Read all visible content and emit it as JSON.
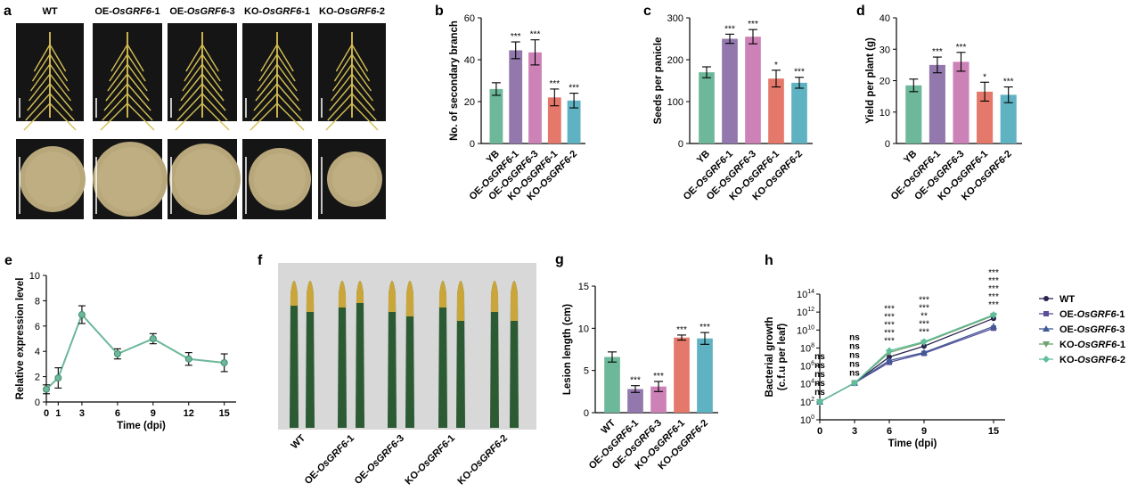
{
  "colors": {
    "YB": "#6db79a",
    "OE1": "#9278ad",
    "OE3": "#cd82b7",
    "KO1": "#e4786a",
    "KO2": "#5fb2c2",
    "line_e": "#6db79a",
    "leaf_dark": "#2b5a33",
    "leaf_yellow": "#c9a53a",
    "photo_bg": "#151515",
    "leaf_bg": "#d8d8d8",
    "grain": "#b8a77a"
  },
  "panels": {
    "a": {
      "letter": "a",
      "labels": [
        {
          "plain": "WT",
          "italic": "",
          "suffix": ""
        },
        {
          "plain": "OE-",
          "italic": "OsGRF6",
          "suffix": "-1"
        },
        {
          "plain": "OE-",
          "italic": "OsGRF6",
          "suffix": "-3"
        },
        {
          "plain": "KO-",
          "italic": "OsGRF6",
          "suffix": "-1"
        },
        {
          "plain": "KO-",
          "italic": "OsGRF6",
          "suffix": "-2"
        }
      ]
    },
    "f": {
      "letter": "f",
      "labels": [
        {
          "plain": "WT",
          "italic": "",
          "suffix": ""
        },
        {
          "plain": "OE-",
          "italic": "OsGRF6",
          "suffix": "-1"
        },
        {
          "plain": "OE-",
          "italic": "OsGRF6",
          "suffix": "-3"
        },
        {
          "plain": "KO-",
          "italic": "OsGRF6",
          "suffix": "-1"
        },
        {
          "plain": "KO-",
          "italic": "OsGRF6",
          "suffix": "-2"
        }
      ]
    }
  },
  "chart_data": [
    {
      "id": "b",
      "letter": "b",
      "type": "bar",
      "ylabel": "No. of secondary branch",
      "ylim": [
        0,
        60
      ],
      "yticks": [
        0,
        20,
        40,
        60
      ],
      "categories": [
        {
          "plain": "YB",
          "italic": "",
          "suffix": ""
        },
        {
          "plain": "OE-",
          "italic": "OsGRF6",
          "suffix": "-1"
        },
        {
          "plain": "OE-",
          "italic": "OsGRF6",
          "suffix": "-3"
        },
        {
          "plain": "KO-",
          "italic": "OsGRF6",
          "suffix": "-1"
        },
        {
          "plain": "KO-",
          "italic": "OsGRF6",
          "suffix": "-2"
        }
      ],
      "values": [
        26,
        44.5,
        43.5,
        22,
        20.5
      ],
      "errors": [
        3,
        4,
        6,
        4,
        3.5
      ],
      "significance": [
        "",
        "***",
        "***",
        "***",
        "***"
      ]
    },
    {
      "id": "c",
      "letter": "c",
      "type": "bar",
      "ylabel": "Seeds per panicle",
      "ylim": [
        0,
        300
      ],
      "yticks": [
        0,
        100,
        200,
        300
      ],
      "categories": [
        {
          "plain": "YB",
          "italic": "",
          "suffix": ""
        },
        {
          "plain": "OE-",
          "italic": "OsGRF6",
          "suffix": "-1"
        },
        {
          "plain": "OE-",
          "italic": "OsGRF6",
          "suffix": "-3"
        },
        {
          "plain": "KO-",
          "italic": "OsGRF6",
          "suffix": "-1"
        },
        {
          "plain": "KO-",
          "italic": "OsGRF6",
          "suffix": "-2"
        }
      ],
      "values": [
        170,
        250,
        255,
        155,
        145
      ],
      "errors": [
        13,
        11,
        17,
        20,
        13
      ],
      "significance": [
        "",
        "***",
        "***",
        "*",
        "***"
      ]
    },
    {
      "id": "d",
      "letter": "d",
      "type": "bar",
      "ylabel": "Yield per plant (g)",
      "ylim": [
        0,
        40
      ],
      "yticks": [
        0,
        10,
        20,
        30,
        40
      ],
      "categories": [
        {
          "plain": "YB",
          "italic": "",
          "suffix": ""
        },
        {
          "plain": "OE-",
          "italic": "OsGRF6",
          "suffix": "-1"
        },
        {
          "plain": "OE-",
          "italic": "OsGRF6",
          "suffix": "-3"
        },
        {
          "plain": "KO-",
          "italic": "OsGRF6",
          "suffix": "-1"
        },
        {
          "plain": "KO-",
          "italic": "OsGRF6",
          "suffix": "-2"
        }
      ],
      "values": [
        18.5,
        25,
        26,
        16.5,
        15.5
      ],
      "errors": [
        2,
        2.5,
        3,
        3,
        2.5
      ],
      "significance": [
        "",
        "***",
        "***",
        "*",
        "***"
      ]
    },
    {
      "id": "e",
      "letter": "e",
      "type": "line",
      "xlabel": "Time (dpi)",
      "ylabel": "Relative expression level",
      "ylim": [
        0,
        10
      ],
      "yticks": [
        0,
        2,
        4,
        6,
        8,
        10
      ],
      "xlim": [
        0,
        16
      ],
      "xticks": [
        0,
        1,
        3,
        6,
        9,
        12,
        15
      ],
      "x": [
        0,
        1,
        3,
        6,
        9,
        12,
        15
      ],
      "values": [
        1,
        1.9,
        6.9,
        3.8,
        5.0,
        3.4,
        3.1
      ],
      "errors": [
        0.35,
        0.8,
        0.7,
        0.4,
        0.4,
        0.5,
        0.7
      ]
    },
    {
      "id": "g",
      "letter": "g",
      "type": "bar",
      "ylabel": "Lesion length (cm)",
      "ylim": [
        0,
        15
      ],
      "yticks": [
        0,
        5,
        10,
        15
      ],
      "categories": [
        {
          "plain": "WT",
          "italic": "",
          "suffix": ""
        },
        {
          "plain": "OE-",
          "italic": "OsGRF6",
          "suffix": "-1"
        },
        {
          "plain": "OE-",
          "italic": "OsGRF6",
          "suffix": "-3"
        },
        {
          "plain": "KO-",
          "italic": "OsGRF6",
          "suffix": "-1"
        },
        {
          "plain": "KO-",
          "italic": "OsGRF6",
          "suffix": "-2"
        }
      ],
      "values": [
        6.6,
        2.8,
        3.1,
        8.9,
        8.8
      ],
      "errors": [
        0.6,
        0.4,
        0.6,
        0.3,
        0.7
      ],
      "significance": [
        "",
        "***",
        "***",
        "***",
        "***"
      ]
    },
    {
      "id": "h",
      "letter": "h",
      "type": "line",
      "xlabel": "Time (dpi)",
      "ylabel": "Bacterial growth",
      "ylabel2": "(c.f.u per leaf)",
      "yscale": "log10",
      "ylim_exp": [
        0,
        14
      ],
      "yticks_exp": [
        0,
        2,
        4,
        6,
        8,
        10,
        12,
        14
      ],
      "xlim": [
        0,
        16
      ],
      "xticks": [
        0,
        3,
        6,
        9,
        15
      ],
      "x": [
        0,
        3,
        6,
        9,
        15
      ],
      "series": [
        {
          "name": "WT",
          "prefix": "",
          "italic": "",
          "suffix": "",
          "color": "#2a2550",
          "marker": "circle",
          "log_values": [
            2.0,
            4.1,
            7.0,
            8.2,
            11.3
          ]
        },
        {
          "name": "OE-OsGRF6-1",
          "prefix": "OE-",
          "italic": "OsGRF6",
          "suffix": "-1",
          "color": "#5a4f9a",
          "marker": "square",
          "log_values": [
            2.0,
            4.1,
            6.4,
            7.4,
            10.2
          ]
        },
        {
          "name": "OE-OsGRF6-3",
          "prefix": "OE-",
          "italic": "OsGRF6",
          "suffix": "-3",
          "color": "#3f5a96",
          "marker": "triangle-up",
          "log_values": [
            2.0,
            4.1,
            6.6,
            7.5,
            10.4
          ]
        },
        {
          "name": "KO-OsGRF6-1",
          "prefix": "KO-",
          "italic": "OsGRF6",
          "suffix": "-1",
          "color": "#6fa26c",
          "marker": "triangle-down",
          "log_values": [
            2.0,
            4.1,
            7.5,
            8.6,
            11.6
          ]
        },
        {
          "name": "KO-OsGRF6-2",
          "prefix": "KO-",
          "italic": "OsGRF6",
          "suffix": "-2",
          "color": "#5fbe9c",
          "marker": "diamond",
          "log_values": [
            2.0,
            4.1,
            7.7,
            8.7,
            11.7
          ]
        }
      ],
      "significance": [
        {
          "x": 0,
          "marks": [
            "ns",
            "ns",
            "ns",
            "ns",
            "ns"
          ]
        },
        {
          "x": 3,
          "marks": [
            "ns",
            "ns",
            "ns",
            "ns",
            "ns"
          ]
        },
        {
          "x": 6,
          "marks": [
            "***",
            "***",
            "***",
            "***",
            "***"
          ]
        },
        {
          "x": 9,
          "marks": [
            "***",
            "***",
            "**",
            "***",
            "***"
          ]
        },
        {
          "x": 15,
          "marks": [
            "***",
            "***",
            "***",
            "***",
            "***"
          ]
        }
      ],
      "sig_colors": [
        "#8d7bb0",
        "#c78ab8",
        "#e08f82",
        "#e08f82",
        "#5fb2c2"
      ]
    }
  ]
}
